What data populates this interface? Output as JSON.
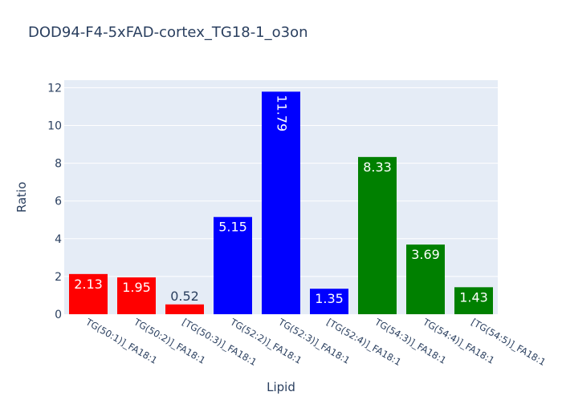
{
  "chart_data": {
    "type": "bar",
    "title": "DOD94-F4-5xFAD-cortex_TG18-1_o3on",
    "xlabel": "Lipid",
    "ylabel": "Ratio",
    "ylim": [
      0,
      12.4
    ],
    "yticks": [
      0,
      2,
      4,
      6,
      8,
      10,
      12
    ],
    "grid": true,
    "categories": [
      "TG(50:1)]_FA18:1",
      "TG(50:2)]_FA18:1",
      "[TG(50:3)]_FA18:1",
      "TG(52:2)]_FA18:1",
      "TG(52:3)]_FA18:1",
      "[TG(52:4)]_FA18:1",
      "TG(54:3)]_FA18:1",
      "TG(54:4)]_FA18:1",
      "[TG(54:5)]_FA18:1"
    ],
    "values": [
      2.13,
      1.95,
      0.52,
      5.15,
      11.79,
      1.35,
      8.33,
      3.69,
      1.43
    ],
    "labels": [
      "2.13",
      "1.95",
      "0.52",
      "5.15",
      "11.79",
      "1.35",
      "8.33",
      "3.69",
      "1.43"
    ],
    "colors": [
      "#ff0000",
      "#ff0000",
      "#ff0000",
      "#0000ff",
      "#0000ff",
      "#0000ff",
      "#008000",
      "#008000",
      "#008000"
    ]
  },
  "style": {
    "plot_bg": "#e5ecf6",
    "text_color": "#2a3f5f",
    "grid_color": "#ffffff"
  }
}
